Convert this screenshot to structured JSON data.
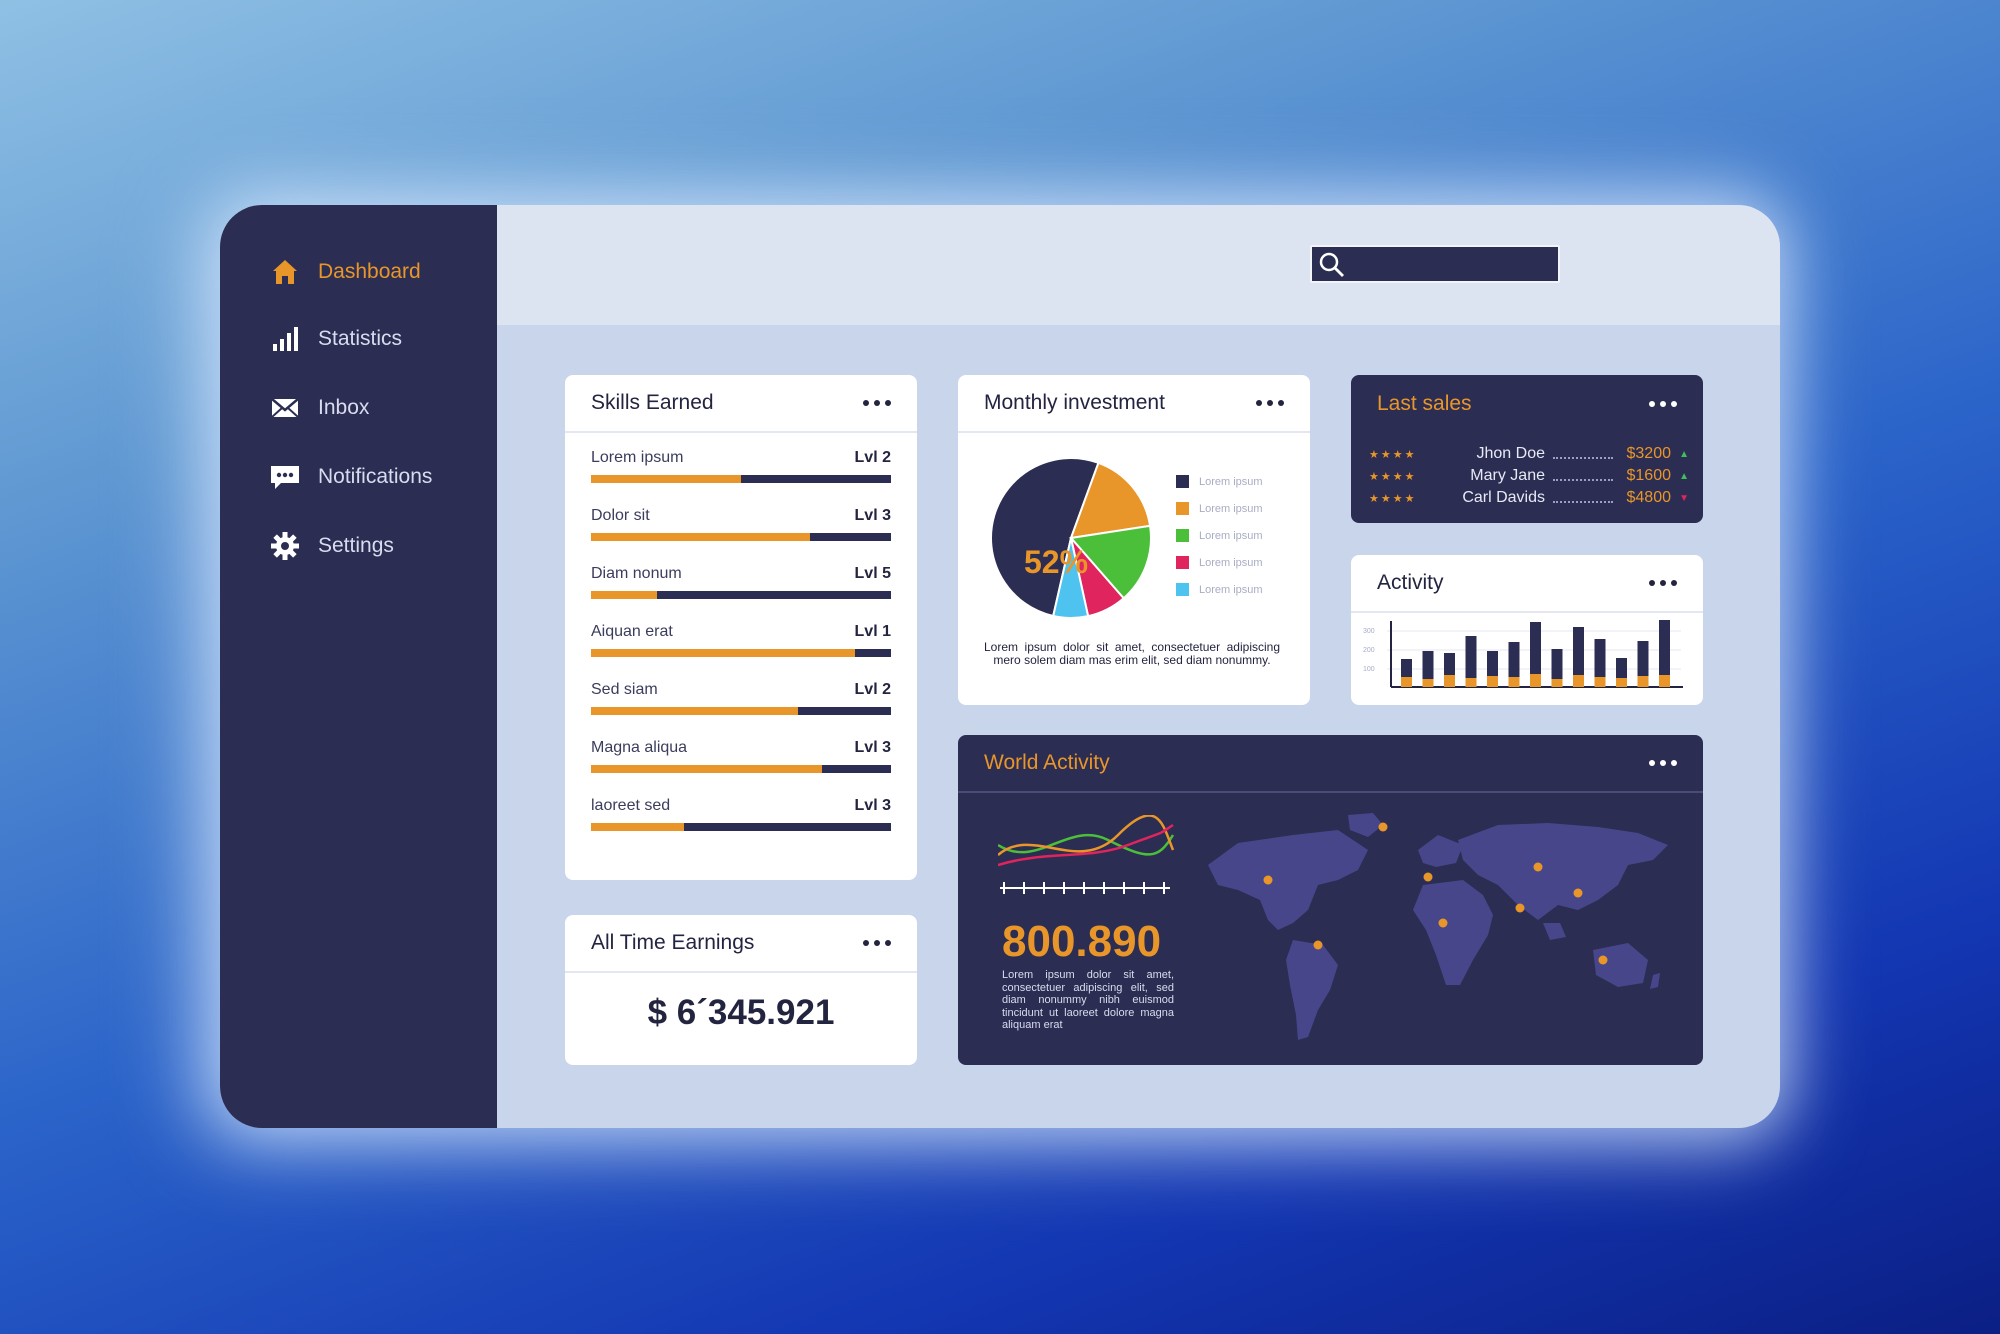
{
  "sidebar": {
    "items": [
      {
        "label": "Dashboard",
        "icon": "home-icon",
        "active": true
      },
      {
        "label": "Statistics",
        "icon": "bar-chart-icon",
        "active": false
      },
      {
        "label": "Inbox",
        "icon": "envelope-icon",
        "active": false
      },
      {
        "label": "Notifications",
        "icon": "chat-bubble-icon",
        "active": false
      },
      {
        "label": "Settings",
        "icon": "gear-icon",
        "active": false
      }
    ]
  },
  "header": {
    "search": {
      "placeholder": "",
      "value": ""
    }
  },
  "skills": {
    "title": "Skills Earned",
    "items": [
      {
        "label": "Lorem ipsum",
        "level": "Lvl 2",
        "progress": 0.5
      },
      {
        "label": "Dolor sit",
        "level": "Lvl 3",
        "progress": 0.73
      },
      {
        "label": "Diam nonum",
        "level": "Lvl 5",
        "progress": 0.22
      },
      {
        "label": "Aiquan erat",
        "level": "Lvl 1",
        "progress": 0.88
      },
      {
        "label": "Sed siam",
        "level": "Lvl 2",
        "progress": 0.69
      },
      {
        "label": "Magna aliqua",
        "level": "Lvl 3",
        "progress": 0.77
      },
      {
        "label": "laoreet sed",
        "level": "Lvl 3",
        "progress": 0.31
      }
    ]
  },
  "earnings": {
    "title": "All Time Earnings",
    "value": "$ 6´345.921"
  },
  "investment": {
    "title": "Monthly investment",
    "center_label": "52%",
    "legend": [
      "Lorem ipsum",
      "Lorem ipsum",
      "Lorem ipsum",
      "Lorem ipsum",
      "Lorem ipsum"
    ],
    "text": "Lorem ipsum dolor sit amet, consectetuer adipiscing mero solem diam mas erim elit, sed diam nonummy."
  },
  "sales": {
    "title": "Last sales",
    "rows": [
      {
        "stars": "★★★★",
        "name": "Jhon Doe",
        "amount": "$3200",
        "trend": "▲",
        "trend_color": "#3fbf5a"
      },
      {
        "stars": "★★★★",
        "name": "Mary Jane",
        "amount": "$1600",
        "trend": "▲",
        "trend_color": "#3fbf5a"
      },
      {
        "stars": "★★★★",
        "name": "Carl Davids",
        "amount": "$4800",
        "trend": "▼",
        "trend_color": "#e0245e"
      }
    ]
  },
  "activity": {
    "title": "Activity",
    "y_ticks": [
      "300",
      "200",
      "100"
    ]
  },
  "world": {
    "title": "World Activity",
    "value": "800.890",
    "text": "Lorem ipsum dolor sit amet, consectetuer adipiscing elit, sed diam nonummy nibh euismod tincidunt ut laoreet dolore magna aliquam erat"
  },
  "colors": {
    "accent": "#e8962a",
    "navy": "#2c2d52",
    "pie": [
      "#2c2d52",
      "#e8962a",
      "#4cbf3a",
      "#e0245e",
      "#4fc3f0"
    ]
  },
  "chart_data": {
    "type": "pie",
    "values": [
      52,
      17,
      16,
      8,
      7
    ],
    "labels": [
      "Lorem ipsum",
      "Lorem ipsum",
      "Lorem ipsum",
      "Lorem ipsum",
      "Lorem ipsum"
    ]
  }
}
